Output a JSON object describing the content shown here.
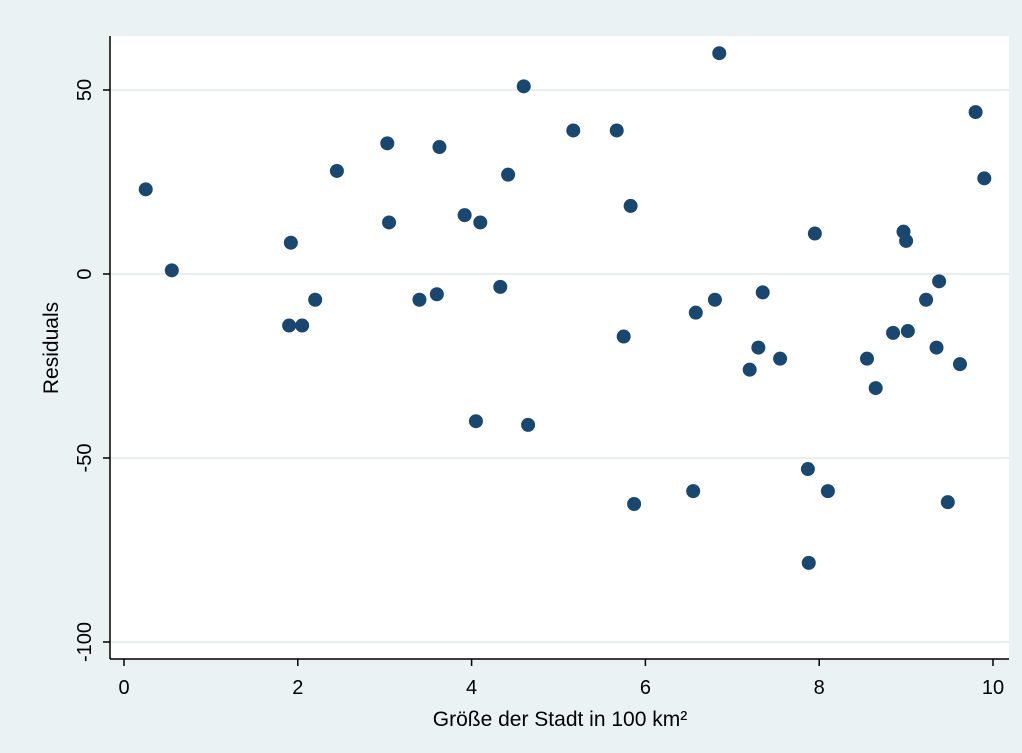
{
  "chart_data": {
    "type": "scatter",
    "title": "",
    "xlabel": "Größe der Stadt in 100 km²",
    "ylabel": "Residuals",
    "xlim": [
      0,
      10
    ],
    "ylim": [
      -100,
      60
    ],
    "xticks": [
      0,
      2,
      4,
      6,
      8,
      10
    ],
    "yticks": [
      -100,
      -50,
      0,
      50
    ],
    "xtick_labels": [
      "0",
      "2",
      "4",
      "6",
      "8",
      "10"
    ],
    "ytick_labels": [
      "-100",
      "-50",
      "0",
      "50"
    ],
    "grid": "horizontal",
    "marker_color": "#1a476f",
    "background_color": "#eaf2f3",
    "plot_background": "#ffffff",
    "points": [
      {
        "x": 0.25,
        "y": 23
      },
      {
        "x": 0.55,
        "y": 1
      },
      {
        "x": 1.9,
        "y": -14
      },
      {
        "x": 1.92,
        "y": 8.5
      },
      {
        "x": 2.05,
        "y": -14
      },
      {
        "x": 2.2,
        "y": -7
      },
      {
        "x": 2.45,
        "y": 28
      },
      {
        "x": 3.03,
        "y": 35.5
      },
      {
        "x": 3.05,
        "y": 14
      },
      {
        "x": 3.4,
        "y": -7
      },
      {
        "x": 3.6,
        "y": -5.5
      },
      {
        "x": 3.63,
        "y": 34.5
      },
      {
        "x": 3.92,
        "y": 16
      },
      {
        "x": 4.05,
        "y": -40
      },
      {
        "x": 4.1,
        "y": 14
      },
      {
        "x": 4.33,
        "y": -3.5
      },
      {
        "x": 4.42,
        "y": 27
      },
      {
        "x": 4.6,
        "y": 51
      },
      {
        "x": 4.65,
        "y": -41
      },
      {
        "x": 5.17,
        "y": 39
      },
      {
        "x": 5.67,
        "y": 39
      },
      {
        "x": 5.75,
        "y": -17
      },
      {
        "x": 5.83,
        "y": 18.5
      },
      {
        "x": 5.87,
        "y": -62.5
      },
      {
        "x": 6.55,
        "y": -59
      },
      {
        "x": 6.58,
        "y": -10.5
      },
      {
        "x": 6.8,
        "y": -7
      },
      {
        "x": 6.85,
        "y": 60
      },
      {
        "x": 7.2,
        "y": -26
      },
      {
        "x": 7.3,
        "y": -20
      },
      {
        "x": 7.35,
        "y": -5
      },
      {
        "x": 7.55,
        "y": -23
      },
      {
        "x": 7.87,
        "y": -53
      },
      {
        "x": 7.88,
        "y": -78.5
      },
      {
        "x": 7.95,
        "y": 11
      },
      {
        "x": 8.1,
        "y": -59
      },
      {
        "x": 8.55,
        "y": -23
      },
      {
        "x": 8.65,
        "y": -31
      },
      {
        "x": 8.85,
        "y": -16
      },
      {
        "x": 8.97,
        "y": 11.5
      },
      {
        "x": 9.0,
        "y": 9
      },
      {
        "x": 9.02,
        "y": -15.5
      },
      {
        "x": 9.23,
        "y": -7
      },
      {
        "x": 9.35,
        "y": -20
      },
      {
        "x": 9.38,
        "y": -2
      },
      {
        "x": 9.48,
        "y": -62
      },
      {
        "x": 9.62,
        "y": -24.5
      },
      {
        "x": 9.8,
        "y": 44
      },
      {
        "x": 9.9,
        "y": 26
      }
    ]
  }
}
